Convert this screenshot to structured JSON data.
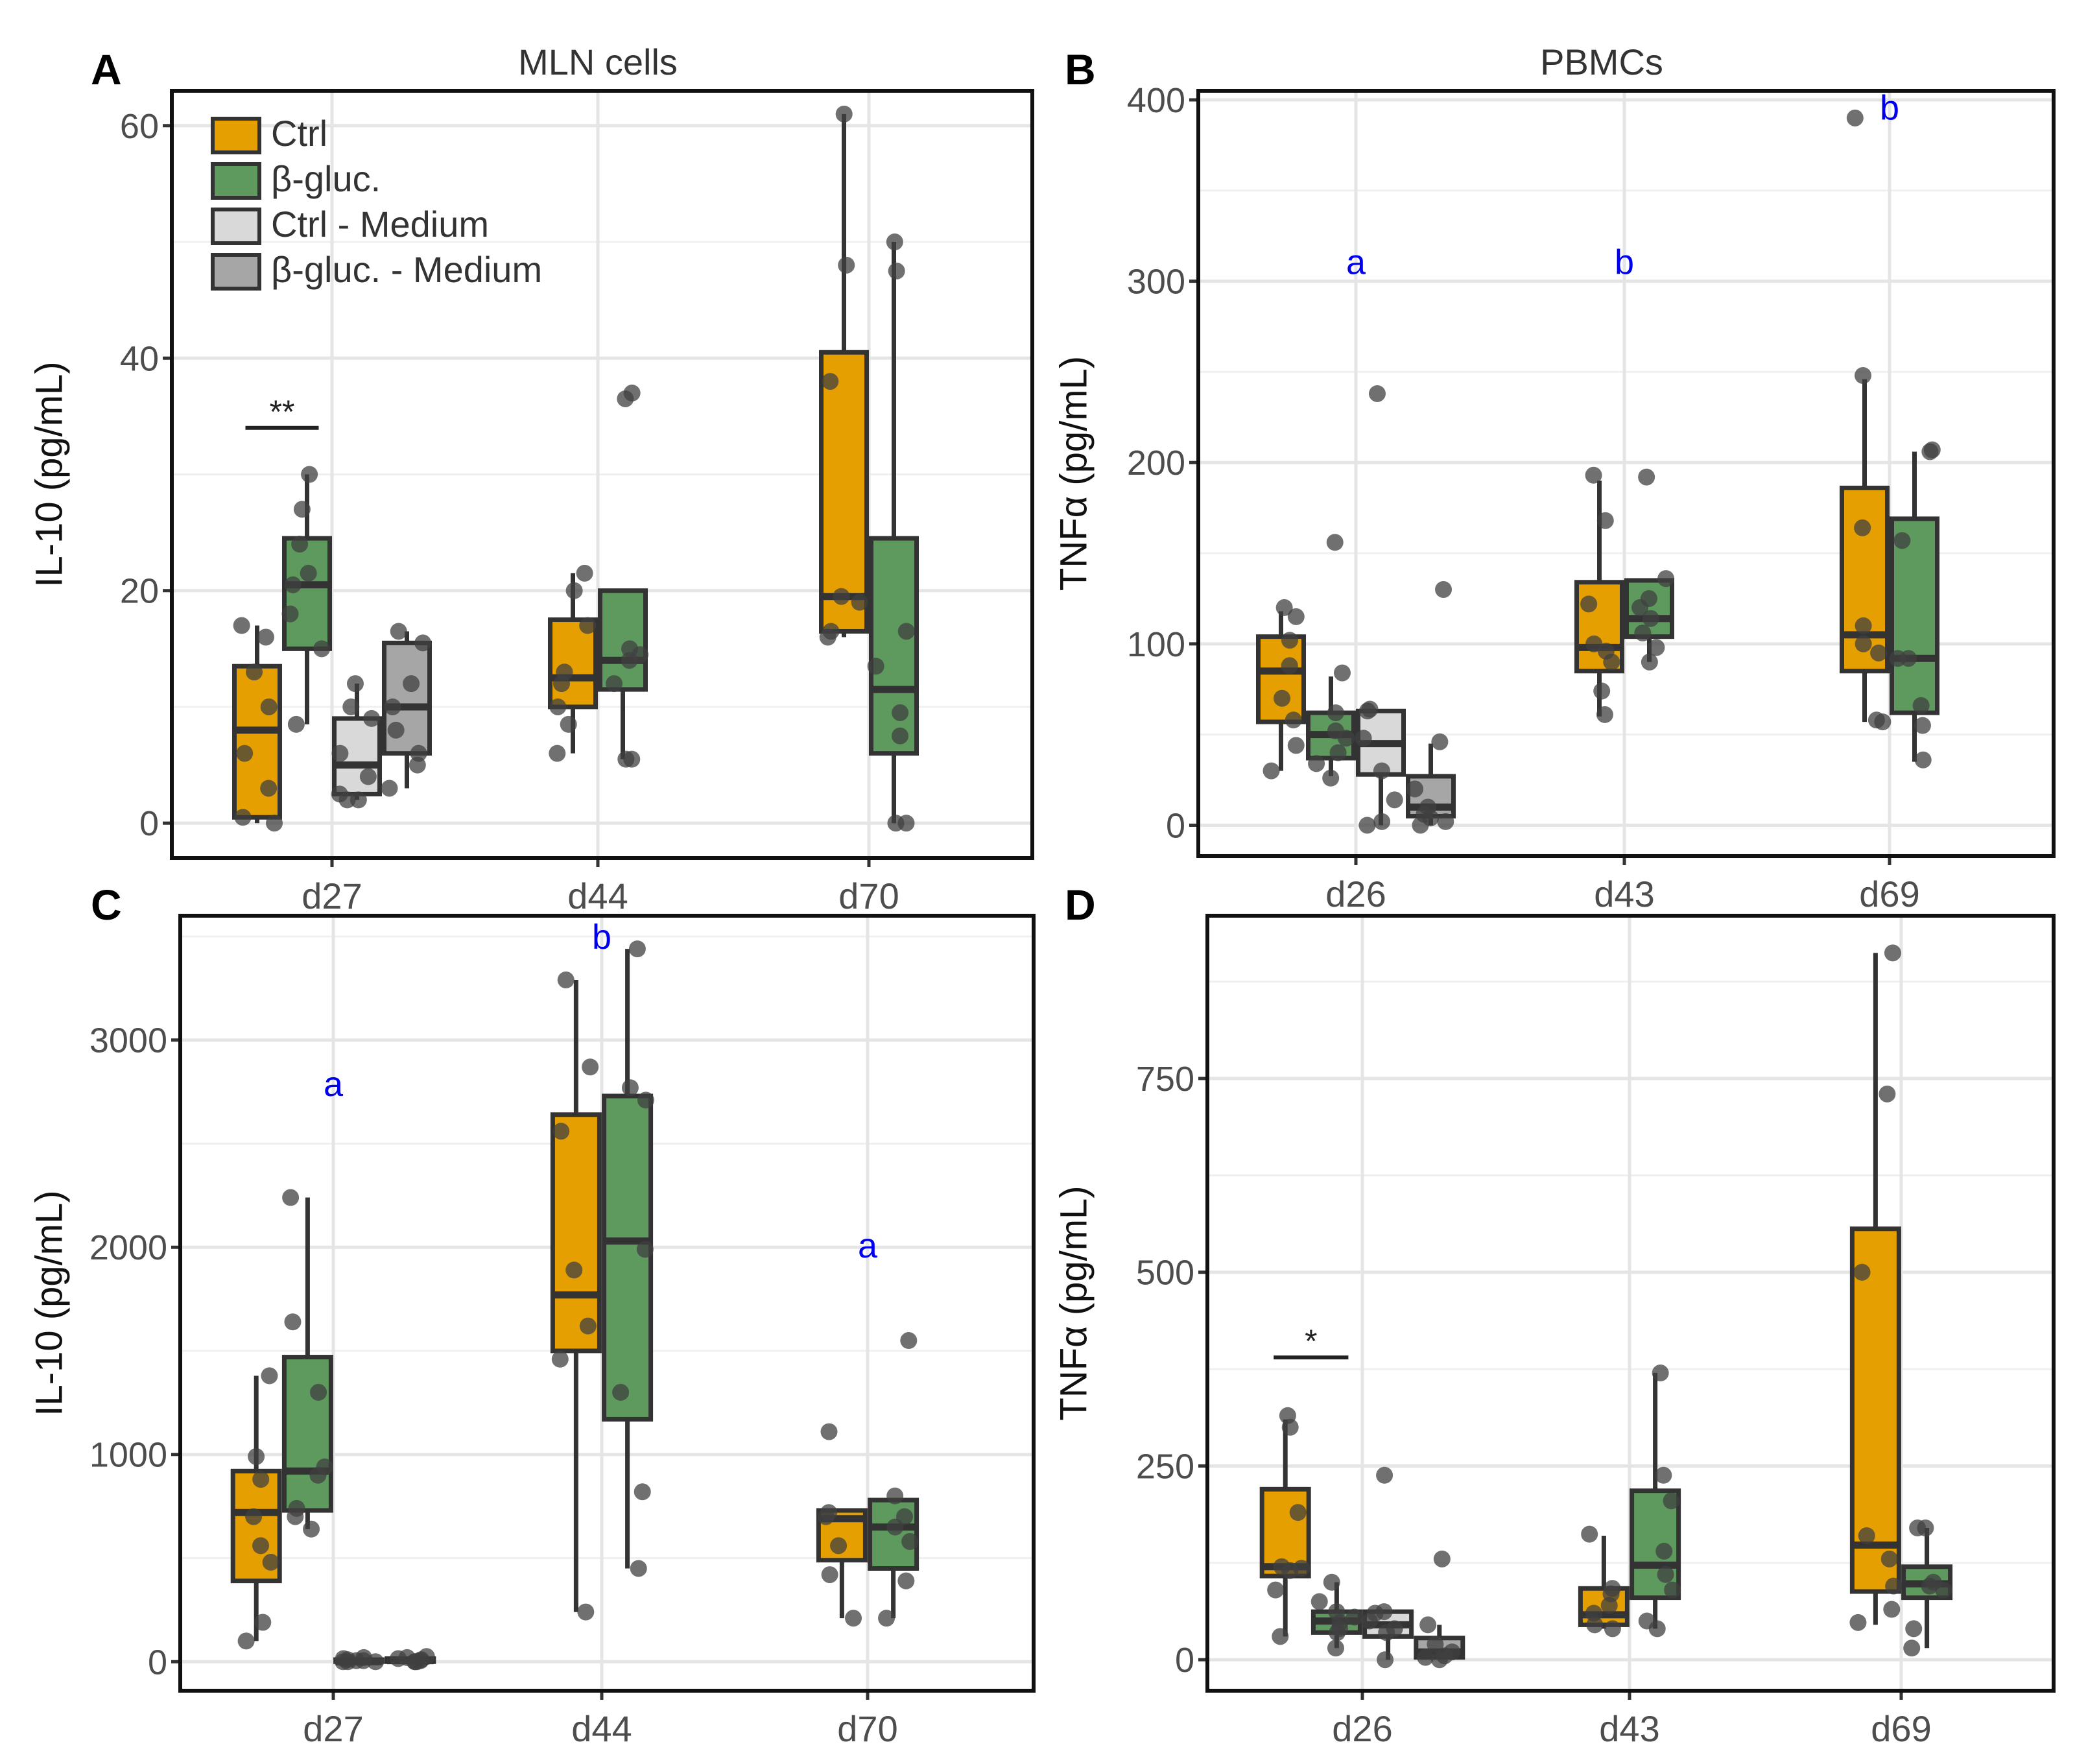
{
  "colors": {
    "ctrl": "#E69F00",
    "bgluc": "#5E9A5E",
    "ctrl_medium": "#D9D9D9",
    "bgluc_medium": "#A6A6A6",
    "border": "#333333",
    "grid": "#E5E5E5",
    "letter": "#0000EE",
    "point": "#404040"
  },
  "legend": {
    "items": [
      {
        "label": "Ctrl",
        "group": "ctrl"
      },
      {
        "label": "β-gluc.",
        "group": "bgluc"
      },
      {
        "label": "Ctrl - Medium",
        "group": "ctrl_medium"
      },
      {
        "label": "β-gluc. - Medium",
        "group": "bgluc_medium"
      }
    ]
  },
  "chart_data": [
    {
      "panel": "A",
      "type": "box",
      "title": "MLN cells",
      "ylabel": "IL-10 (pg/mL)",
      "ylim": [
        -3,
        63
      ],
      "yticks": [
        0,
        20,
        40,
        60
      ],
      "categories": [
        "d27",
        "d44",
        "d70"
      ],
      "legend_position": "top-left",
      "boxes": [
        {
          "cat": 0,
          "group": "ctrl",
          "min": 0,
          "q1": 0.5,
          "median": 8,
          "q3": 13.5,
          "max": 17,
          "points": [
            16,
            17,
            13,
            10,
            6,
            3,
            0.5,
            0
          ]
        },
        {
          "cat": 0,
          "group": "bgluc",
          "min": 8.5,
          "q1": 15,
          "median": 20.5,
          "q3": 24.5,
          "max": 30,
          "points": [
            30,
            27,
            24,
            21.5,
            20.5,
            18,
            15,
            8.5
          ]
        },
        {
          "cat": 0,
          "group": "ctrl_medium",
          "min": 2,
          "q1": 2.5,
          "median": 5,
          "q3": 9,
          "max": 12,
          "points": [
            12,
            10,
            9,
            6,
            4,
            2.5,
            2,
            2
          ]
        },
        {
          "cat": 0,
          "group": "bgluc_medium",
          "min": 3,
          "q1": 6,
          "median": 10,
          "q3": 15.5,
          "max": 16.5,
          "points": [
            16.5,
            15.5,
            12,
            10,
            8,
            6,
            5,
            3
          ]
        },
        {
          "cat": 1,
          "group": "ctrl",
          "min": 6,
          "q1": 10,
          "median": 12.5,
          "q3": 17.5,
          "max": 21.5,
          "points": [
            21.5,
            20,
            17,
            13,
            12,
            10,
            8.5,
            6
          ]
        },
        {
          "cat": 1,
          "group": "bgluc",
          "min": 5.5,
          "q1": 11.5,
          "median": 14,
          "q3": 20,
          "max": 20,
          "points": [
            37,
            36.5,
            15,
            14.5,
            14,
            12,
            5.5,
            5.5
          ]
        },
        {
          "cat": 2,
          "group": "ctrl",
          "min": 16,
          "q1": 16.5,
          "median": 19.5,
          "q3": 40.5,
          "max": 61,
          "points": [
            61,
            48,
            38,
            19.5,
            19,
            16.5,
            16
          ]
        },
        {
          "cat": 2,
          "group": "bgluc",
          "min": 0,
          "q1": 6,
          "median": 11.5,
          "q3": 24.5,
          "max": 50,
          "points": [
            50,
            47.5,
            16.5,
            13.5,
            9.5,
            7.5,
            0,
            0
          ]
        }
      ],
      "significance": [
        {
          "label": "**",
          "cat": 0,
          "from_group": 0,
          "to_group": 1,
          "y": 34
        }
      ],
      "letters": []
    },
    {
      "panel": "B",
      "type": "box",
      "title": "PBMCs",
      "ylabel": "TNFα (pg/mL)",
      "ylim": [
        -17,
        405
      ],
      "yticks": [
        0,
        100,
        200,
        300,
        400
      ],
      "categories": [
        "d26",
        "d43",
        "d69"
      ],
      "boxes": [
        {
          "cat": 0,
          "group": "ctrl",
          "min": 30,
          "q1": 57,
          "median": 85,
          "q3": 104,
          "max": 118,
          "points": [
            120,
            115,
            102,
            88,
            70,
            58,
            44,
            30
          ]
        },
        {
          "cat": 0,
          "group": "bgluc",
          "min": 27,
          "q1": 37,
          "median": 50,
          "q3": 62,
          "max": 82,
          "points": [
            156,
            84,
            62,
            52,
            48,
            40,
            34,
            26
          ]
        },
        {
          "cat": 0,
          "group": "ctrl_medium",
          "min": 0,
          "q1": 28,
          "median": 45,
          "q3": 63,
          "max": 63,
          "points": [
            238,
            64,
            63,
            48,
            30,
            14,
            2,
            0
          ]
        },
        {
          "cat": 0,
          "group": "bgluc_medium",
          "min": 0,
          "q1": 5,
          "median": 10,
          "q3": 27,
          "max": 45,
          "points": [
            130,
            46,
            20,
            10,
            6,
            4,
            2,
            0
          ]
        },
        {
          "cat": 1,
          "group": "ctrl",
          "min": 60,
          "q1": 85,
          "median": 98,
          "q3": 134,
          "max": 190,
          "points": [
            193,
            168,
            122,
            100,
            96,
            90,
            74,
            61
          ]
        },
        {
          "cat": 1,
          "group": "bgluc",
          "min": 90,
          "q1": 104,
          "median": 114,
          "q3": 135,
          "max": 135,
          "points": [
            192,
            136,
            125,
            120,
            114,
            106,
            98,
            90
          ]
        },
        {
          "cat": 2,
          "group": "ctrl",
          "min": 57,
          "q1": 85,
          "median": 105,
          "q3": 186,
          "max": 246,
          "points": [
            390,
            248,
            164,
            110,
            100,
            95,
            58,
            57
          ]
        },
        {
          "cat": 2,
          "group": "bgluc",
          "min": 35,
          "q1": 62,
          "median": 92,
          "q3": 169,
          "max": 206,
          "points": [
            207,
            206,
            157,
            92,
            92,
            66,
            55,
            36
          ]
        }
      ],
      "significance": [],
      "letters": [
        {
          "cat": 0,
          "label": "a",
          "y": 304
        },
        {
          "cat": 1,
          "label": "b",
          "y": 304
        },
        {
          "cat": 2,
          "label": "b",
          "y": 389
        }
      ]
    },
    {
      "panel": "C",
      "type": "box",
      "title": "",
      "ylabel": "IL-10 (pg/mL)",
      "ylim": [
        -140,
        3600
      ],
      "yticks": [
        0,
        1000,
        2000,
        3000
      ],
      "categories": [
        "d27",
        "d44",
        "d70"
      ],
      "boxes": [
        {
          "cat": 0,
          "group": "ctrl",
          "min": 100,
          "q1": 390,
          "median": 720,
          "q3": 920,
          "max": 1380,
          "points": [
            1380,
            990,
            880,
            700,
            560,
            480,
            190,
            100
          ]
        },
        {
          "cat": 0,
          "group": "bgluc",
          "min": 640,
          "q1": 730,
          "median": 920,
          "q3": 1470,
          "max": 2240,
          "points": [
            2240,
            1640,
            1300,
            940,
            900,
            740,
            700,
            640
          ]
        },
        {
          "cat": 0,
          "group": "ctrl_medium",
          "min": 0,
          "q1": 0,
          "median": 0,
          "q3": 10,
          "max": 20,
          "points": [
            20,
            15,
            10,
            5,
            5,
            0,
            0,
            0
          ]
        },
        {
          "cat": 0,
          "group": "bgluc_medium",
          "min": 0,
          "q1": 0,
          "median": 5,
          "q3": 15,
          "max": 25,
          "points": [
            25,
            20,
            15,
            10,
            5,
            0,
            0,
            0
          ]
        },
        {
          "cat": 1,
          "group": "ctrl",
          "min": 240,
          "q1": 1500,
          "median": 1770,
          "q3": 2640,
          "max": 3290,
          "points": [
            3290,
            2870,
            2560,
            1890,
            1620,
            1460,
            240
          ]
        },
        {
          "cat": 1,
          "group": "bgluc",
          "min": 450,
          "q1": 1170,
          "median": 2030,
          "q3": 2730,
          "max": 3440,
          "points": [
            3440,
            2770,
            2710,
            1990,
            1300,
            820,
            450
          ]
        },
        {
          "cat": 2,
          "group": "ctrl",
          "min": 210,
          "q1": 490,
          "median": 690,
          "q3": 730,
          "max": 730,
          "points": [
            1110,
            720,
            700,
            560,
            420,
            210
          ]
        },
        {
          "cat": 2,
          "group": "bgluc",
          "min": 210,
          "q1": 450,
          "median": 650,
          "q3": 780,
          "max": 780,
          "points": [
            1550,
            800,
            700,
            650,
            580,
            390,
            210
          ]
        }
      ],
      "significance": [],
      "letters": [
        {
          "cat": 0,
          "label": "a",
          "y": 2730
        },
        {
          "cat": 1,
          "label": "b",
          "y": 3440
        },
        {
          "cat": 2,
          "label": "a",
          "y": 1950
        }
      ]
    },
    {
      "panel": "D",
      "type": "box",
      "title": "",
      "ylabel": "TNFα (pg/mL)",
      "ylim": [
        -40,
        960
      ],
      "yticks": [
        0,
        250,
        500,
        750
      ],
      "categories": [
        "d26",
        "d43",
        "d69"
      ],
      "boxes": [
        {
          "cat": 0,
          "group": "ctrl",
          "min": 30,
          "q1": 108,
          "median": 120,
          "q3": 220,
          "max": 310,
          "points": [
            315,
            300,
            190,
            120,
            118,
            115,
            90,
            30
          ]
        },
        {
          "cat": 0,
          "group": "bgluc",
          "min": 15,
          "q1": 35,
          "median": 50,
          "q3": 62,
          "max": 100,
          "points": [
            100,
            75,
            62,
            55,
            48,
            40,
            35,
            15
          ]
        },
        {
          "cat": 0,
          "group": "ctrl_medium",
          "min": 0,
          "q1": 30,
          "median": 45,
          "q3": 62,
          "max": 62,
          "points": [
            238,
            62,
            60,
            50,
            40,
            35,
            0
          ]
        },
        {
          "cat": 0,
          "group": "bgluc_medium",
          "min": 0,
          "q1": 3,
          "median": 10,
          "q3": 28,
          "max": 45,
          "points": [
            130,
            45,
            20,
            10,
            5,
            3,
            0
          ]
        },
        {
          "cat": 1,
          "group": "ctrl",
          "min": 40,
          "q1": 45,
          "median": 58,
          "q3": 92,
          "max": 160,
          "points": [
            162,
            92,
            85,
            70,
            60,
            45,
            40
          ]
        },
        {
          "cat": 1,
          "group": "bgluc",
          "min": 40,
          "q1": 80,
          "median": 122,
          "q3": 218,
          "max": 370,
          "points": [
            370,
            238,
            205,
            140,
            110,
            90,
            50,
            40
          ]
        },
        {
          "cat": 2,
          "group": "ctrl",
          "min": 45,
          "q1": 88,
          "median": 148,
          "q3": 556,
          "max": 912,
          "points": [
            912,
            730,
            500,
            160,
            130,
            95,
            65,
            48
          ]
        },
        {
          "cat": 2,
          "group": "bgluc",
          "min": 15,
          "q1": 80,
          "median": 98,
          "q3": 120,
          "max": 170,
          "points": [
            170,
            170,
            100,
            95,
            90,
            40,
            15
          ]
        }
      ],
      "significance": [
        {
          "label": "*",
          "cat": 0,
          "from_group": 0,
          "to_group": 1,
          "y": 390
        }
      ],
      "letters": []
    }
  ]
}
